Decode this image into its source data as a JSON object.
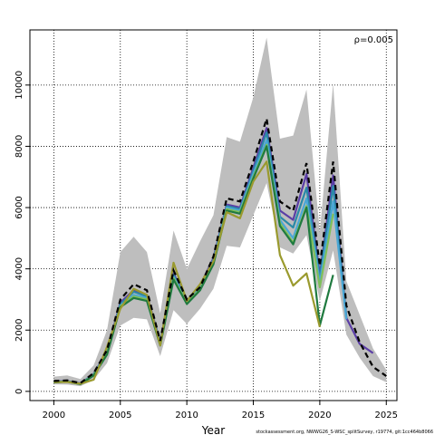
{
  "chart_data": {
    "type": "line",
    "xlabel": "Year",
    "ylabel": "",
    "xlim": [
      1998.2,
      2025.8
    ],
    "ylim": [
      -300,
      11800
    ],
    "xticks": [
      2000,
      2005,
      2010,
      2015,
      2020,
      2025
    ],
    "yticks": [
      0,
      2000,
      4000,
      6000,
      8000,
      10000
    ],
    "grid": true,
    "annotation": "ρ=0.005",
    "footnote": "stockassessment.org, NWWG26_S-WSC_splitSurvey, r19774, git:1cc464b8066",
    "colors": {
      "band": "#bebebe",
      "reference": "#000000",
      "series": [
        "#5b3ea6",
        "#2a8aa8",
        "#4aa7d6",
        "#7fbf5a",
        "#1f7a3f",
        "#9a9a2e"
      ]
    },
    "band": {
      "x": [
        2000,
        2001,
        2002,
        2003,
        2004,
        2005,
        2006,
        2007,
        2008,
        2009,
        2010,
        2011,
        2012,
        2013,
        2014,
        2015,
        2016,
        2017,
        2018,
        2019,
        2020,
        2021,
        2022,
        2023,
        2024,
        2025
      ],
      "lower": [
        230,
        220,
        170,
        380,
        920,
        2150,
        2400,
        2350,
        1150,
        2650,
        2200,
        2700,
        3350,
        4750,
        4700,
        5750,
        6800,
        4700,
        4500,
        5100,
        2950,
        4600,
        1850,
        1100,
        500,
        300
      ],
      "upper": [
        480,
        520,
        400,
        850,
        2000,
        4550,
        5050,
        4550,
        2550,
        5250,
        4000,
        4900,
        5750,
        8300,
        8150,
        9600,
        11550,
        8250,
        8350,
        9850,
        5200,
        10050,
        3600,
        2500,
        1400,
        700
      ]
    },
    "reference": {
      "name": "",
      "x": [
        2000,
        2001,
        2002,
        2003,
        2004,
        2005,
        2006,
        2007,
        2008,
        2009,
        2010,
        2011,
        2012,
        2013,
        2014,
        2015,
        2016,
        2017,
        2018,
        2019,
        2020,
        2021,
        2022,
        2023,
        2024,
        2025
      ],
      "values": [
        340,
        360,
        270,
        600,
        1350,
        3000,
        3500,
        3300,
        1650,
        3950,
        3000,
        3400,
        4400,
        6300,
        6200,
        7500,
        8900,
        6200,
        5900,
        7450,
        4100,
        7500,
        2800,
        1600,
        800,
        500
      ]
    },
    "series": [
      {
        "x": [
          2000,
          2001,
          2002,
          2003,
          2004,
          2005,
          2006,
          2007,
          2008,
          2009,
          2010,
          2011,
          2012,
          2013,
          2014,
          2015,
          2016,
          2017,
          2018,
          2019,
          2020,
          2021,
          2022,
          2023,
          2024
        ],
        "values": [
          320,
          340,
          260,
          570,
          1300,
          2900,
          3300,
          3150,
          1600,
          3850,
          2950,
          3450,
          4350,
          6100,
          6000,
          7300,
          8600,
          5900,
          5600,
          7100,
          3800,
          7050,
          2400,
          1550,
          1250
        ]
      },
      {
        "x": [
          2000,
          2001,
          2002,
          2003,
          2004,
          2005,
          2006,
          2007,
          2008,
          2009,
          2010,
          2011,
          2012,
          2013,
          2014,
          2015,
          2016,
          2017,
          2018,
          2019,
          2020,
          2021,
          2022
        ],
        "values": [
          310,
          330,
          250,
          560,
          1280,
          2850,
          3250,
          3100,
          1580,
          3800,
          2950,
          3400,
          4300,
          6050,
          5950,
          7200,
          8450,
          5700,
          5350,
          6650,
          3700,
          6700,
          2400
        ]
      },
      {
        "x": [
          2000,
          2001,
          2002,
          2003,
          2004,
          2005,
          2006,
          2007,
          2008,
          2009,
          2010,
          2011,
          2012,
          2013,
          2014,
          2015,
          2016,
          2017,
          2018,
          2019,
          2020,
          2021,
          2022
        ],
        "values": [
          300,
          320,
          240,
          550,
          1250,
          2800,
          3150,
          3050,
          1550,
          3750,
          2900,
          3350,
          4250,
          6000,
          5900,
          7100,
          8200,
          5600,
          5000,
          6300,
          3550,
          6200,
          2350
        ]
      },
      {
        "x": [
          2000,
          2001,
          2002,
          2003,
          2004,
          2005,
          2006,
          2007,
          2008,
          2009,
          2010,
          2011,
          2012,
          2013,
          2014,
          2015,
          2016,
          2017,
          2018,
          2019,
          2020,
          2021
        ],
        "values": [
          300,
          320,
          240,
          540,
          1230,
          2780,
          3100,
          3000,
          1520,
          3700,
          2880,
          3330,
          4200,
          5950,
          5850,
          7000,
          8050,
          5500,
          4850,
          6050,
          3400,
          5800
        ]
      },
      {
        "x": [
          2000,
          2001,
          2002,
          2003,
          2004,
          2005,
          2006,
          2007,
          2008,
          2009,
          2010,
          2011,
          2012,
          2013,
          2014,
          2015,
          2016,
          2017,
          2018,
          2019,
          2020,
          2021
        ],
        "values": [
          295,
          315,
          235,
          520,
          1200,
          2750,
          3050,
          2950,
          1500,
          3650,
          2850,
          3300,
          4150,
          5900,
          5800,
          6950,
          8000,
          5400,
          4800,
          6000,
          2150,
          3800
        ]
      },
      {
        "x": [
          2000,
          2001,
          2002,
          2003,
          2004,
          2005,
          2006,
          2007,
          2008,
          2009,
          2010,
          2011,
          2012,
          2013,
          2014,
          2015,
          2016,
          2017,
          2018,
          2019,
          2020
        ],
        "values": [
          300,
          310,
          250,
          380,
          1450,
          2700,
          3350,
          3150,
          1500,
          4200,
          2950,
          3500,
          4250,
          5850,
          5650,
          6850,
          7500,
          4450,
          3450,
          3850,
          2100
        ]
      }
    ]
  }
}
